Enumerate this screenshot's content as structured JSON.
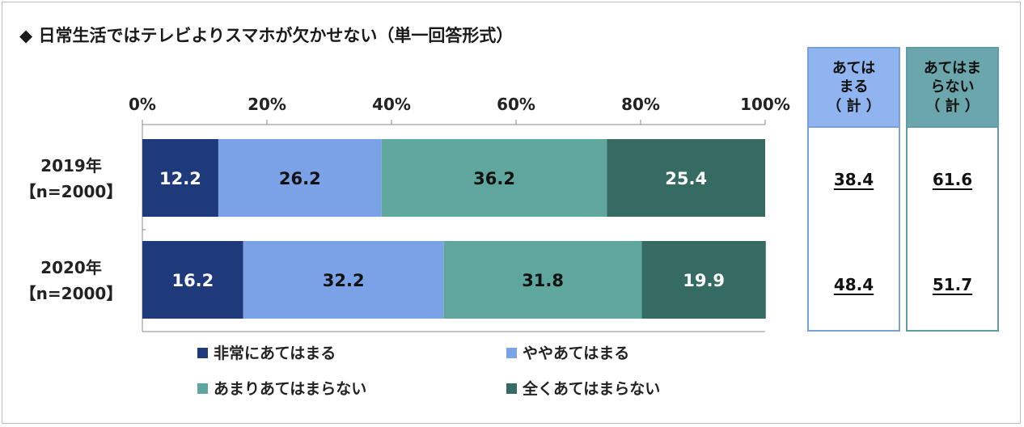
{
  "title": "◆ 日常生活ではテレビよりスマホが欠かせない（単一回答形式）",
  "colors": {
    "very_applies": "#1f3a7a",
    "somewhat_applies": "#7ba2e6",
    "somewhat_not": "#5fa69e",
    "not_at_all": "#356b62",
    "sum_applies_border": "#7aa0da",
    "sum_applies_head": "#8fb4f0",
    "sum_not_border": "#5f9da3",
    "sum_not_head": "#6aa6ac"
  },
  "chart_data": {
    "type": "bar",
    "orientation": "horizontal-stacked-100",
    "x_ticks": [
      "0%",
      "20%",
      "40%",
      "60%",
      "80%",
      "100%"
    ],
    "xlim": [
      0,
      100
    ],
    "categories": [
      {
        "year": "2019年",
        "n": "【n=2000】"
      },
      {
        "year": "2020年",
        "n": "【n=2000】"
      }
    ],
    "series": [
      {
        "name": "非常にあてはまる",
        "values": [
          12.2,
          16.2
        ],
        "labels": [
          "12.2",
          "16.2"
        ]
      },
      {
        "name": "ややあてはまる",
        "values": [
          26.2,
          32.2
        ],
        "labels": [
          "26.2",
          "32.2"
        ]
      },
      {
        "name": "あまりあてはまらない",
        "values": [
          36.2,
          31.8
        ],
        "labels": [
          "36.2",
          "31.8"
        ]
      },
      {
        "name": "全くあてはまらない",
        "values": [
          25.4,
          19.9
        ],
        "labels": [
          "25.4",
          "19.9"
        ]
      }
    ],
    "legend_position": "bottom"
  },
  "summary": {
    "applies": {
      "header": "あては\nまる\n（ 計 ）",
      "values": [
        "38.4",
        "48.4"
      ]
    },
    "not_applies": {
      "header": "あてはま\nらない\n（ 計 ）",
      "values": [
        "61.6",
        "51.7"
      ]
    }
  }
}
